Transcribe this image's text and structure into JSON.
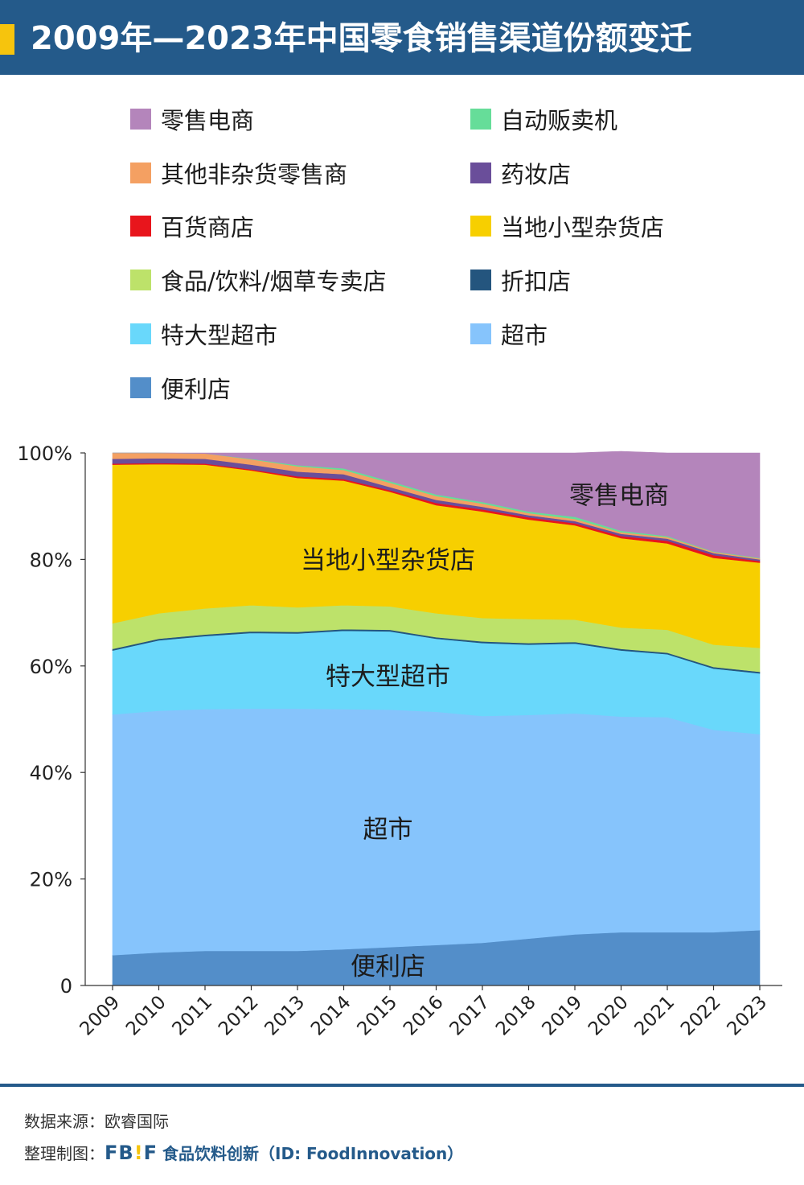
{
  "header": {
    "title": "2009年—2023年中国零食销售渠道份额变迁"
  },
  "legend": [
    {
      "label": "零售电商",
      "color": "#b485bb"
    },
    {
      "label": "自动贩卖机",
      "color": "#66dd99"
    },
    {
      "label": "其他非杂货零售商",
      "color": "#f4a062"
    },
    {
      "label": "药妆店",
      "color": "#6a4e9a"
    },
    {
      "label": "百货商店",
      "color": "#e8151c"
    },
    {
      "label": "当地小型杂货店",
      "color": "#f7cf00"
    },
    {
      "label": "食品/饮料/烟草专卖店",
      "color": "#bde26a"
    },
    {
      "label": "折扣店",
      "color": "#24557e"
    },
    {
      "label": "特大型超市",
      "color": "#69d8fb"
    },
    {
      "label": "超市",
      "color": "#86c4fc"
    },
    {
      "label": "便利店",
      "color": "#538ec9"
    }
  ],
  "chart_data": {
    "type": "area",
    "stacked": true,
    "categories": [
      "2009",
      "2010",
      "2011",
      "2012",
      "2013",
      "2014",
      "2015",
      "2016",
      "2017",
      "2018",
      "2019",
      "2020",
      "2021",
      "2022",
      "2023"
    ],
    "ylim": [
      0,
      100
    ],
    "y_ticks": [
      "0",
      "20%",
      "40%",
      "60%",
      "80%",
      "100%"
    ],
    "grid": false,
    "series": [
      {
        "name": "便利店",
        "color": "#538ec9",
        "values": [
          5.7,
          6.2,
          6.5,
          6.5,
          6.5,
          6.8,
          7.2,
          7.6,
          8.0,
          8.8,
          9.6,
          10.0,
          10.0,
          10.0,
          10.4
        ]
      },
      {
        "name": "超市",
        "color": "#86c4fc",
        "values": [
          45.2,
          45.4,
          45.4,
          45.5,
          45.5,
          45.1,
          44.6,
          43.8,
          42.6,
          42.0,
          41.5,
          40.5,
          40.4,
          38.0,
          36.8
        ]
      },
      {
        "name": "特大型超市",
        "color": "#69d8fb",
        "values": [
          12.0,
          13.2,
          13.7,
          14.2,
          14.1,
          14.7,
          14.7,
          13.7,
          13.7,
          13.2,
          13.1,
          12.4,
          11.8,
          11.5,
          11.4
        ]
      },
      {
        "name": "折扣店",
        "color": "#24557e",
        "values": [
          0.3,
          0.3,
          0.3,
          0.3,
          0.3,
          0.3,
          0.3,
          0.3,
          0.3,
          0.3,
          0.3,
          0.3,
          0.3,
          0.3,
          0.3
        ]
      },
      {
        "name": "食品/饮料/烟草专卖店",
        "color": "#bde26a",
        "values": [
          4.8,
          4.8,
          4.9,
          4.9,
          4.6,
          4.5,
          4.4,
          4.5,
          4.4,
          4.5,
          4.2,
          4.0,
          4.3,
          4.2,
          4.5
        ]
      },
      {
        "name": "当地小型杂货店",
        "color": "#f7cf00",
        "values": [
          29.8,
          28.0,
          27.0,
          25.3,
          24.3,
          23.4,
          21.5,
          20.3,
          20.0,
          18.7,
          17.7,
          16.8,
          16.2,
          16.3,
          16.0
        ]
      },
      {
        "name": "百货商店",
        "color": "#e8151c",
        "values": [
          0.2,
          0.2,
          0.2,
          0.2,
          0.3,
          0.3,
          0.3,
          0.4,
          0.4,
          0.4,
          0.4,
          0.4,
          0.5,
          0.5,
          0.3
        ]
      },
      {
        "name": "药妆店",
        "color": "#6a4e9a",
        "values": [
          0.9,
          0.9,
          0.9,
          0.9,
          0.9,
          0.9,
          0.6,
          0.6,
          0.5,
          0.4,
          0.4,
          0.4,
          0.4,
          0.4,
          0.3
        ]
      },
      {
        "name": "其他非杂货零售商",
        "color": "#f4a062",
        "values": [
          1.1,
          1.0,
          1.0,
          1.0,
          1.0,
          0.8,
          0.8,
          0.7,
          0.6,
          0.4,
          0.4,
          0.3,
          0.3,
          0.2,
          0.2
        ]
      },
      {
        "name": "自动贩卖机",
        "color": "#66dd99",
        "values": [
          0.0,
          0.0,
          0.0,
          0.1,
          0.2,
          0.3,
          0.3,
          0.3,
          0.3,
          0.3,
          0.4,
          0.3,
          0.2,
          0.1,
          0.1
        ]
      },
      {
        "name": "零售电商",
        "color": "#b485bb",
        "values": [
          0.0,
          0.0,
          0.1,
          1.1,
          2.3,
          2.9,
          5.3,
          7.8,
          9.2,
          11.0,
          12.0,
          14.9,
          15.6,
          18.5,
          19.7
        ]
      }
    ],
    "annotations": [
      "零售电商",
      "当地小型杂货店",
      "特大型超市",
      "超市",
      "便利店"
    ]
  },
  "footer": {
    "source": "数据来源：欧睿国际",
    "credit_prefix": "整理制图：",
    "logo": "FB!F",
    "brand": "食品饮料创新（ID: FoodInnovation）"
  }
}
